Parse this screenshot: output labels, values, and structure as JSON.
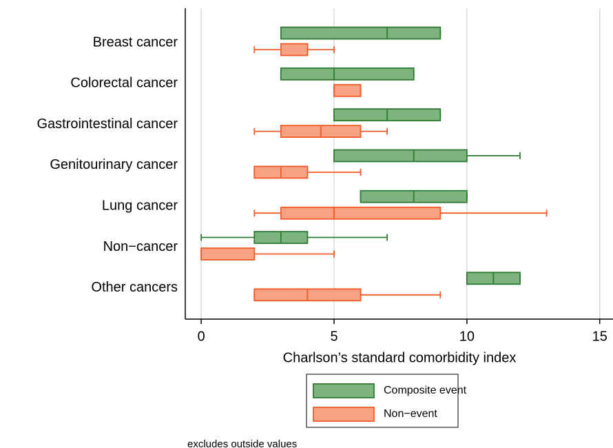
{
  "chart_data": {
    "type": "boxplot",
    "orientation": "horizontal",
    "categories": [
      "Breast cancer",
      "Colorectal cancer",
      "Gastrointestinal cancer",
      "Genitourinary cancer",
      "Lung cancer",
      "Non−cancer",
      "Other cancers"
    ],
    "series": [
      {
        "name": "Composite event",
        "color": "#7db37d",
        "edgecolor": "#2f7a32",
        "min": [
          3,
          3,
          5,
          5,
          6,
          0,
          10
        ],
        "q1": [
          3,
          3,
          5,
          5,
          6,
          2,
          10
        ],
        "median": [
          7,
          5,
          7,
          8,
          8,
          3,
          11
        ],
        "q3": [
          9,
          8,
          9,
          10,
          10,
          4,
          12
        ],
        "max": [
          9,
          8,
          9,
          12,
          10,
          7,
          12
        ]
      },
      {
        "name": "Non−event",
        "color": "#f9a283",
        "edgecolor": "#ef5a26",
        "min": [
          2,
          5,
          2,
          2,
          2,
          0,
          2
        ],
        "q1": [
          3,
          5,
          3,
          2,
          3,
          0,
          2
        ],
        "median": [
          4,
          6,
          4.5,
          3,
          5,
          0,
          4
        ],
        "q3": [
          4,
          6,
          6,
          4,
          9,
          2,
          6
        ],
        "max": [
          5,
          6,
          7,
          6,
          13,
          5,
          9
        ]
      }
    ],
    "x_label": "Charlson’s standard comorbidity index",
    "xlim": [
      -0.6,
      15.5
    ],
    "xticks": [
      0,
      5,
      10,
      15
    ],
    "grid": true,
    "note": "excludes outside values"
  }
}
